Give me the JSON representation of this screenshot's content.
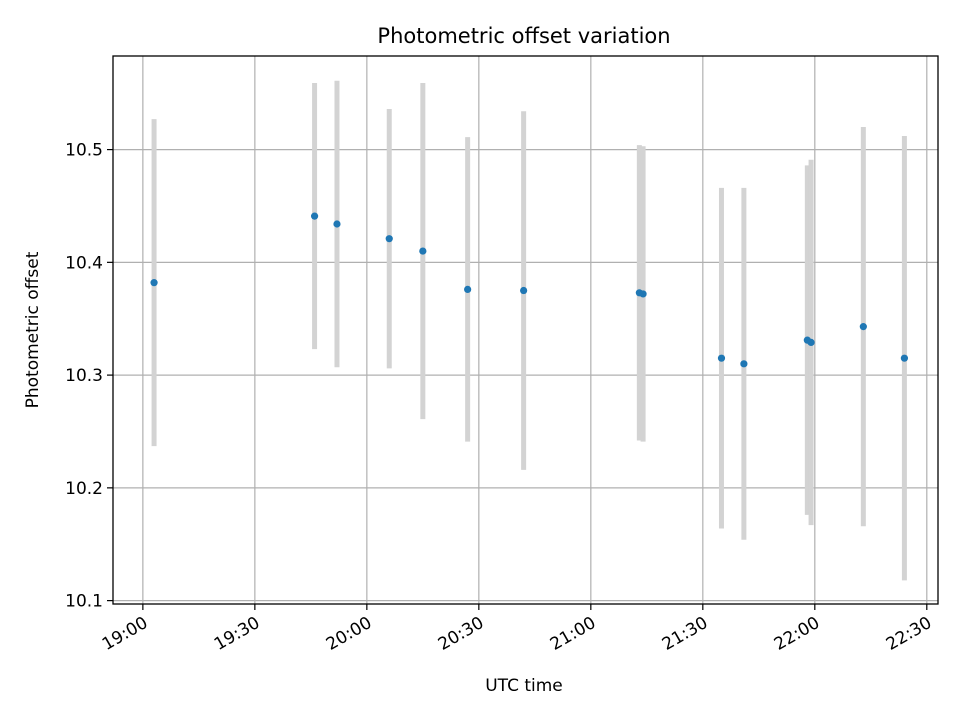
{
  "chart_data": {
    "type": "scatter",
    "title": "Photometric offset variation",
    "xlabel": "UTC time",
    "ylabel": "Photometric offset",
    "x_tick_labels": [
      "19:00",
      "19:30",
      "20:00",
      "20:30",
      "21:00",
      "21:30",
      "22:00",
      "22:30"
    ],
    "x_ticks": [
      "19:00",
      "19:30",
      "20:00",
      "20:30",
      "21:00",
      "21:30",
      "22:00",
      "22:30"
    ],
    "y_ticks": [
      10.1,
      10.2,
      10.3,
      10.4,
      10.5
    ],
    "y_tick_labels": [
      "10.1",
      "10.2",
      "10.3",
      "10.4",
      "10.5"
    ],
    "xlim": [
      "18:52",
      "22:33"
    ],
    "ylim": [
      10.097,
      10.583
    ],
    "grid": true,
    "colors": {
      "point": "#1f77b4",
      "errorbar": "#d3d3d3",
      "grid": "#b0b0b0"
    },
    "points": [
      {
        "x": "19:03",
        "y": 10.382,
        "err": 0.145
      },
      {
        "x": "19:46",
        "y": 10.441,
        "err": 0.118
      },
      {
        "x": "19:52",
        "y": 10.434,
        "err": 0.127
      },
      {
        "x": "20:06",
        "y": 10.421,
        "err": 0.115
      },
      {
        "x": "20:15",
        "y": 10.41,
        "err": 0.149
      },
      {
        "x": "20:27",
        "y": 10.376,
        "err": 0.135
      },
      {
        "x": "20:42",
        "y": 10.375,
        "err": 0.159
      },
      {
        "x": "21:13",
        "y": 10.373,
        "err": 0.131
      },
      {
        "x": "21:14",
        "y": 10.372,
        "err": 0.131
      },
      {
        "x": "21:35",
        "y": 10.315,
        "err": 0.151
      },
      {
        "x": "21:41",
        "y": 10.31,
        "err": 0.156
      },
      {
        "x": "21:58",
        "y": 10.331,
        "err": 0.155
      },
      {
        "x": "21:59",
        "y": 10.329,
        "err": 0.162
      },
      {
        "x": "22:13",
        "y": 10.343,
        "err": 0.177
      },
      {
        "x": "22:24",
        "y": 10.315,
        "err": 0.197
      }
    ]
  }
}
